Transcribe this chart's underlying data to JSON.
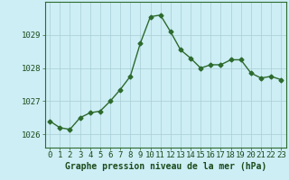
{
  "x": [
    0,
    1,
    2,
    3,
    4,
    5,
    6,
    7,
    8,
    9,
    10,
    11,
    12,
    13,
    14,
    15,
    16,
    17,
    18,
    19,
    20,
    21,
    22,
    23
  ],
  "y": [
    1026.4,
    1026.2,
    1026.15,
    1026.5,
    1026.65,
    1026.7,
    1027.0,
    1027.35,
    1027.75,
    1028.75,
    1029.55,
    1029.6,
    1029.1,
    1028.55,
    1028.3,
    1028.0,
    1028.1,
    1028.1,
    1028.25,
    1028.25,
    1027.85,
    1027.7,
    1027.75,
    1027.65
  ],
  "line_color": "#2d6a2d",
  "marker": "D",
  "marker_size": 2.5,
  "line_width": 1.0,
  "bg_color": "#cdeef5",
  "grid_color": "#a8cdd4",
  "ylabel_ticks": [
    1026,
    1027,
    1028,
    1029
  ],
  "xlabel_label": "Graphe pression niveau de la mer (hPa)",
  "xlabel_fontsize": 7,
  "tick_fontsize": 6.5,
  "ylim": [
    1025.6,
    1030.0
  ],
  "xlim": [
    -0.5,
    23.5
  ],
  "title_color": "#1a4a1a",
  "axis_color": "#2d6a2d"
}
